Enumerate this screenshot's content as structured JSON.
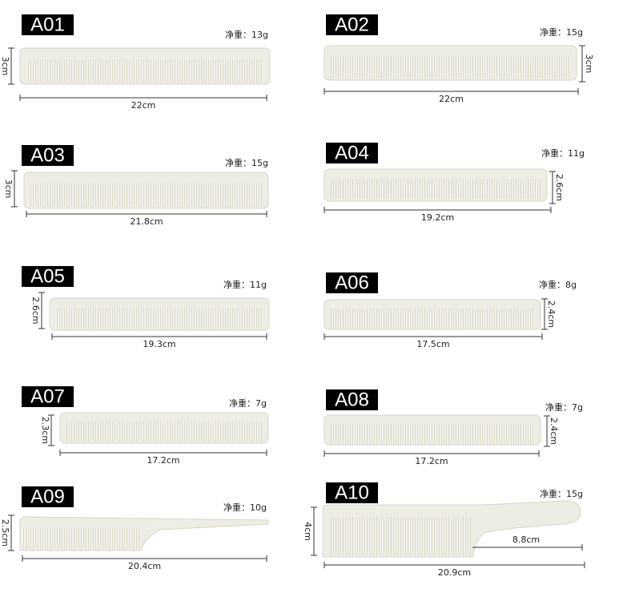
{
  "items": [
    {
      "code": "A01",
      "weight": "净重：13g",
      "length": "22cm",
      "height": "3cm"
    },
    {
      "code": "A02",
      "weight": "净重：15g",
      "length": "22cm",
      "height": "3cm"
    },
    {
      "code": "A03",
      "weight": "净重：15g",
      "length": "21.8cm",
      "height": "3cm"
    },
    {
      "code": "A04",
      "weight": "净重：11g",
      "length": "19.2cm",
      "height": "2.6cm"
    },
    {
      "code": "A05",
      "weight": "净重：11g",
      "length": "19.3cm",
      "height": "2.6cm"
    },
    {
      "code": "A06",
      "weight": "净重：8g",
      "length": "17.5cm",
      "height": "2.4cm"
    },
    {
      "code": "A07",
      "weight": "净重：7g",
      "length": "17.2cm",
      "height": "2.3cm"
    },
    {
      "code": "A08",
      "weight": "净重：7g",
      "length": "17.2cm",
      "height": "2.4cm"
    },
    {
      "code": "A09",
      "weight": "净重：10g",
      "length": "20.4cm",
      "height": "2.5cm"
    },
    {
      "code": "A10",
      "weight": "净重：15g",
      "length": "20.9cm",
      "height": "4cm",
      "handle": "8.8cm"
    }
  ]
}
